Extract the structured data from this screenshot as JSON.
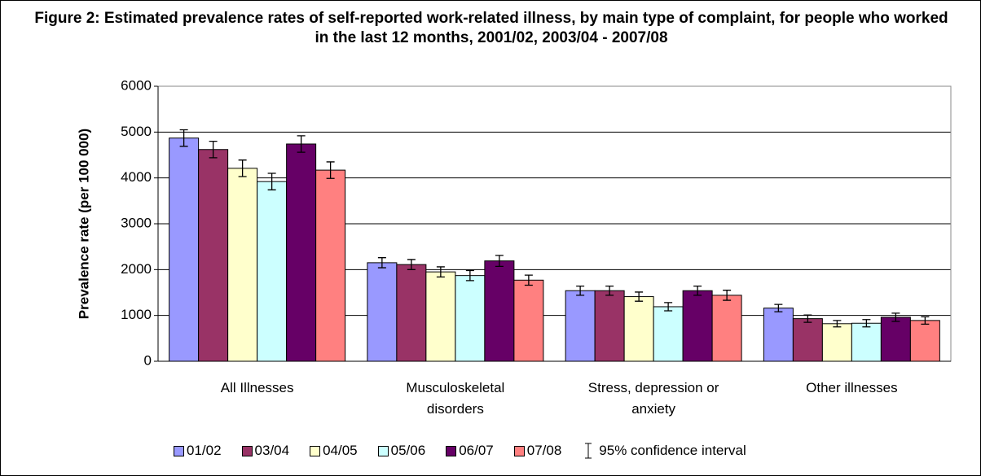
{
  "chart_data": {
    "type": "bar",
    "title": "Figure 2: Estimated prevalence rates of self-reported work-related illness, by main type of complaint, for people who worked in the last 12 months, 2001/02, 2003/04 - 2007/08",
    "y_label": "Prevalence rate (per 100 000)",
    "categories": [
      "All Illnesses",
      "Musculoskeletal disorders",
      "Stress, depression or anxiety",
      "Other illnesses"
    ],
    "series": [
      {
        "name": "01/02",
        "color": "#9999ff",
        "values": [
          4870,
          2150,
          1540,
          1160
        ],
        "errors": [
          180,
          110,
          100,
          80
        ]
      },
      {
        "name": "03/04",
        "color": "#993366",
        "values": [
          4620,
          2110,
          1540,
          930
        ],
        "errors": [
          180,
          110,
          100,
          80
        ]
      },
      {
        "name": "04/05",
        "color": "#ffffcc",
        "values": [
          4210,
          1950,
          1410,
          820
        ],
        "errors": [
          180,
          110,
          100,
          70
        ]
      },
      {
        "name": "05/06",
        "color": "#ccffff",
        "values": [
          3920,
          1870,
          1190,
          830
        ],
        "errors": [
          180,
          110,
          90,
          80
        ]
      },
      {
        "name": "06/07",
        "color": "#660066",
        "values": [
          4740,
          2190,
          1540,
          960
        ],
        "errors": [
          180,
          120,
          100,
          90
        ]
      },
      {
        "name": "07/08",
        "color": "#ff8080",
        "values": [
          4170,
          1770,
          1440,
          890
        ],
        "errors": [
          180,
          110,
          110,
          80
        ]
      }
    ],
    "error_label": "95% confidence interval",
    "ylim": [
      0,
      6000
    ],
    "yticks": [
      0,
      1000,
      2000,
      3000,
      4000,
      5000,
      6000
    ],
    "grid": true
  }
}
